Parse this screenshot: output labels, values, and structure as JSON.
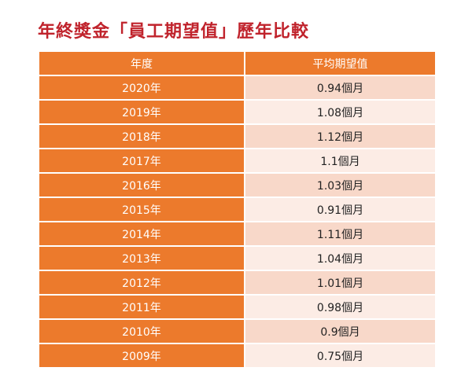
{
  "title": "年終獎金「員工期望值」歷年比較",
  "colors": {
    "title": "#c0232c",
    "header_bg": "#ec7a2c",
    "row_odd": "#f8d8c9",
    "row_even": "#fcece5"
  },
  "chart_data": {
    "type": "table",
    "columns": [
      "年度",
      "平均期望值"
    ],
    "rows": [
      {
        "year": "2020年",
        "value": "0.94個月"
      },
      {
        "year": "2019年",
        "value": "1.08個月"
      },
      {
        "year": "2018年",
        "value": "1.12個月"
      },
      {
        "year": "2017年",
        "value": "1.1個月"
      },
      {
        "year": "2016年",
        "value": "1.03個月"
      },
      {
        "year": "2015年",
        "value": "0.91個月"
      },
      {
        "year": "2014年",
        "value": "1.11個月"
      },
      {
        "year": "2013年",
        "value": "1.04個月"
      },
      {
        "year": "2012年",
        "value": "1.01個月"
      },
      {
        "year": "2011年",
        "value": "0.98個月"
      },
      {
        "year": "2010年",
        "value": "0.9個月"
      },
      {
        "year": "2009年",
        "value": "0.75個月"
      }
    ]
  }
}
